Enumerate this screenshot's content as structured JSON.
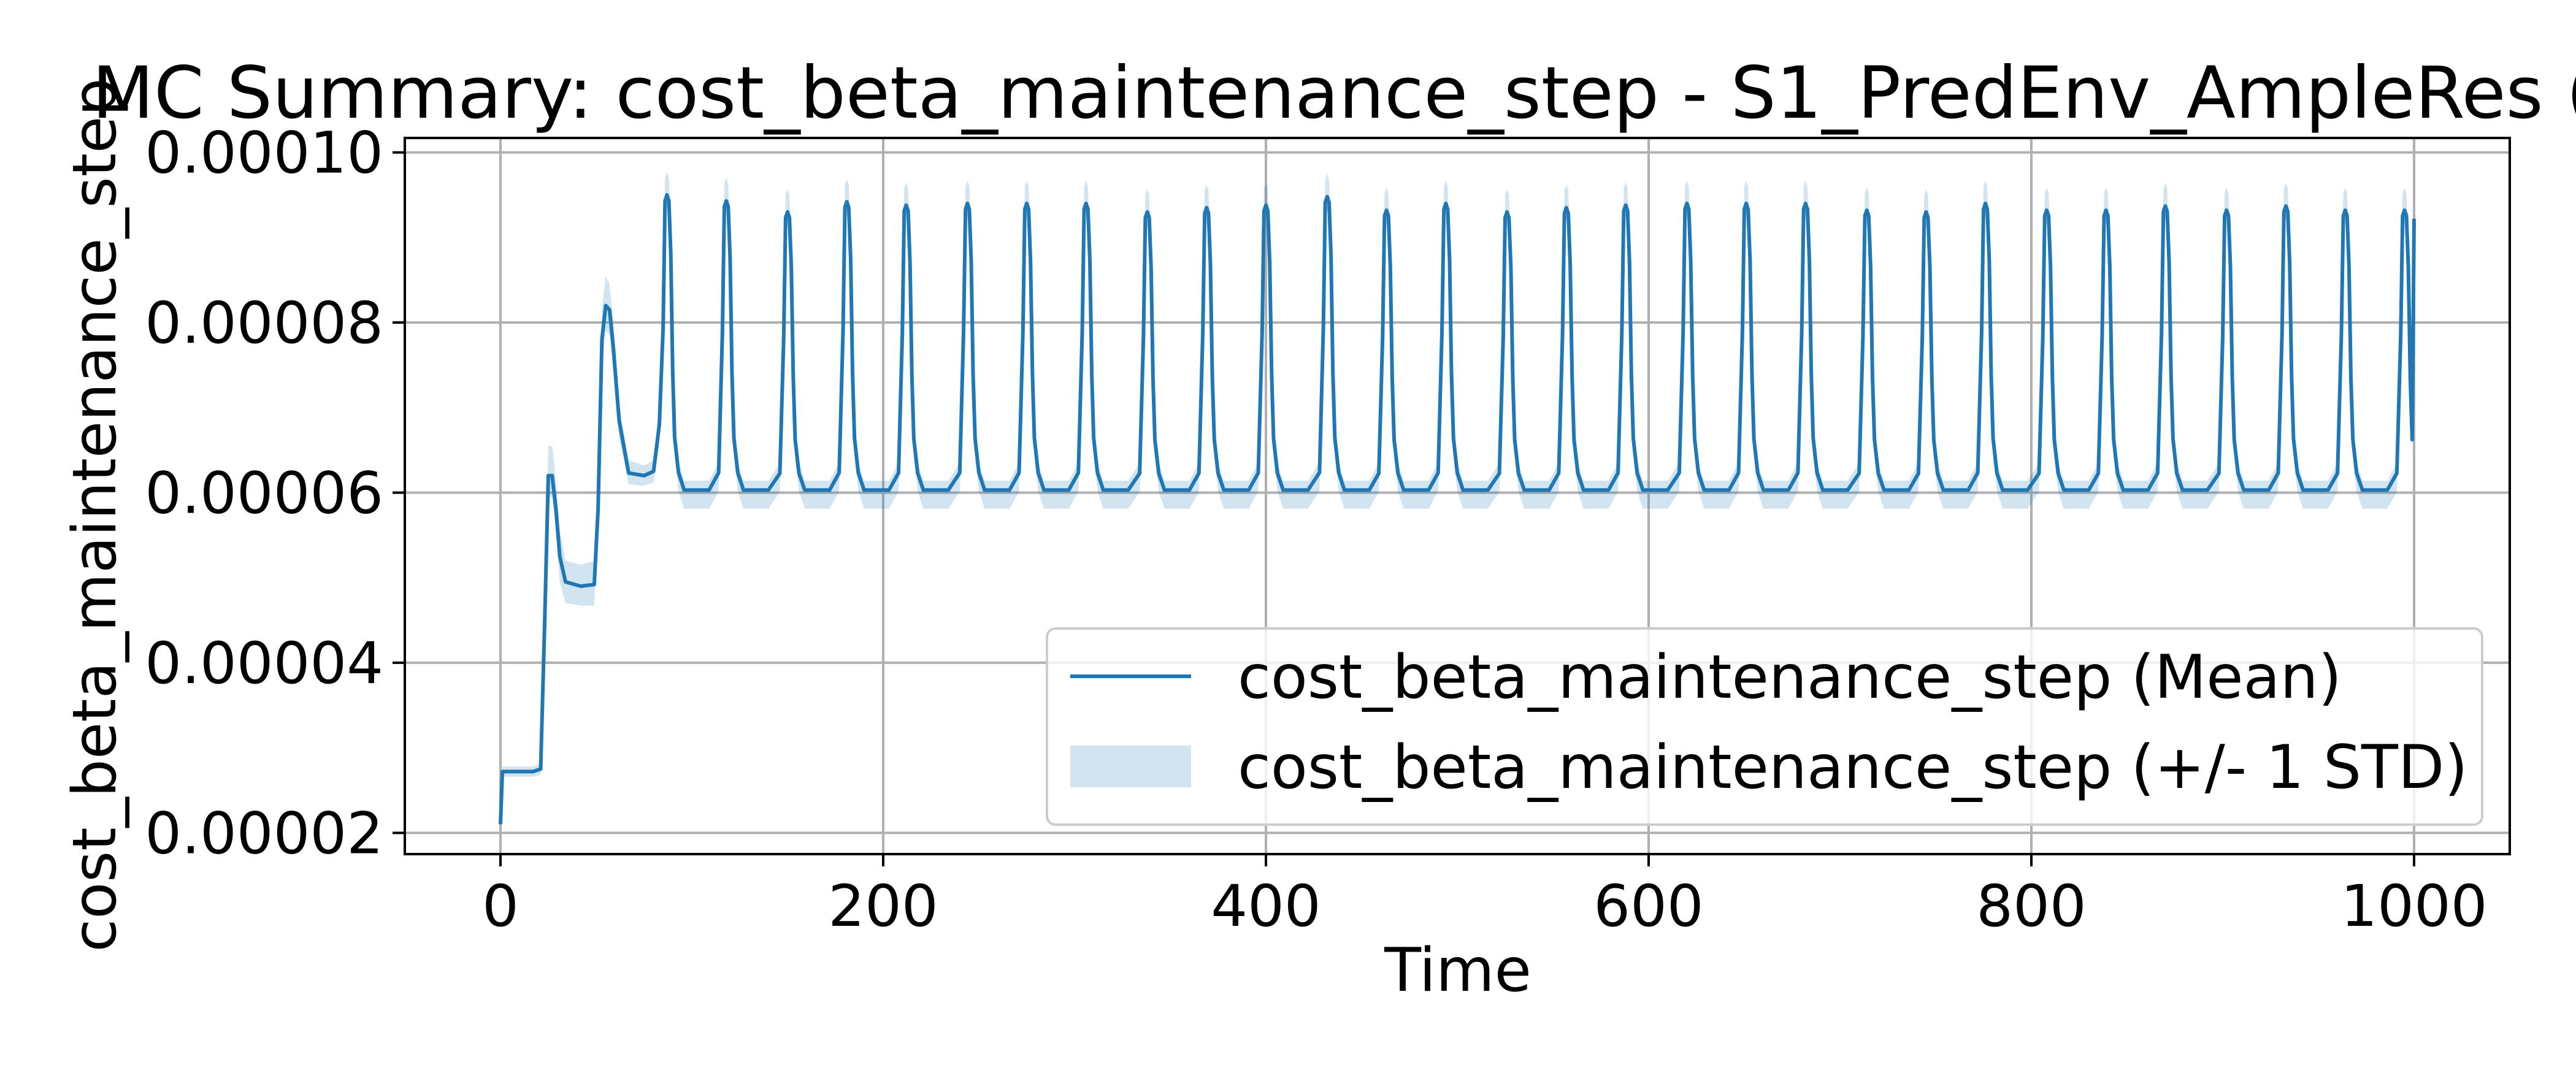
{
  "chart_data": {
    "type": "line",
    "title": "MC Summary: cost_beta_maintenance_step - S1_PredEnv_AmpleRes (",
    "xlabel": "Time",
    "ylabel": "cost_beta_maintenance_step",
    "xlim": [
      -50,
      1050
    ],
    "ylim": [
      1.75e-05,
      0.0001017
    ],
    "x_ticks": [
      0,
      200,
      400,
      600,
      800,
      1000
    ],
    "x_tick_labels": [
      "0",
      "200",
      "400",
      "600",
      "800",
      "1000"
    ],
    "y_ticks": [
      2e-05,
      4e-05,
      6e-05,
      8e-05,
      0.0001
    ],
    "y_tick_labels": [
      "0.00002",
      "0.00004",
      "0.00006",
      "0.00008",
      "0.00010"
    ],
    "grid": true,
    "legend_position": "lower-right",
    "colors": {
      "line": "#1f77b4",
      "band": "#1f77b4",
      "band_opacity": 0.2
    },
    "series": [
      {
        "name": "cost_beta_maintenance_step (Mean)",
        "kind": "line"
      },
      {
        "name": "cost_beta_maintenance_step (+/- 1 STD)",
        "kind": "band"
      }
    ],
    "mean": {
      "x": [
        0,
        1,
        17,
        21,
        23,
        25,
        27,
        29,
        31,
        34,
        42,
        49,
        51,
        53,
        55,
        57,
        59,
        62,
        67,
        75,
        80,
        83
      ],
      "y": [
        2.1e-05,
        2.72e-05,
        2.72e-05,
        2.75e-05,
        4.4e-05,
        6.2e-05,
        6.2e-05,
        5.8e-05,
        5.25e-05,
        4.95e-05,
        4.9e-05,
        4.92e-05,
        5.8e-05,
        7.8e-05,
        8.2e-05,
        8.15e-05,
        7.7e-05,
        6.85e-05,
        6.23e-05,
        6.2e-05,
        6.25e-05,
        6.8e-05
      ]
    },
    "std_band": {
      "x": [
        0,
        1,
        17,
        21,
        23,
        25,
        27,
        29,
        31,
        34,
        42,
        49,
        51,
        53,
        55,
        57,
        59,
        62,
        67,
        75,
        80,
        83
      ],
      "upper": [
        2.15e-05,
        2.78e-05,
        2.78e-05,
        2.82e-05,
        4.6e-05,
        6.55e-05,
        6.55e-05,
        6.15e-05,
        5.55e-05,
        5.2e-05,
        5.15e-05,
        5.2e-05,
        6e-05,
        8.15e-05,
        8.55e-05,
        8.45e-05,
        8e-05,
        7.05e-05,
        6.38e-05,
        6.32e-05,
        6.38e-05,
        7e-05
      ],
      "lower": [
        2.05e-05,
        2.66e-05,
        2.66e-05,
        2.68e-05,
        4.2e-05,
        5.95e-05,
        5.95e-05,
        5.55e-05,
        4.95e-05,
        4.7e-05,
        4.67e-05,
        4.67e-05,
        5.55e-05,
        7.5e-05,
        7.9e-05,
        7.85e-05,
        7.4e-05,
        6.65e-05,
        6.1e-05,
        6.08e-05,
        6.12e-05,
        6.6e-05
      ]
    },
    "peaks": {
      "note_free": true,
      "times": [
        87,
        118,
        150,
        181,
        212,
        244,
        275,
        306,
        338,
        369,
        400,
        432,
        463,
        494,
        526,
        557,
        588,
        620,
        651,
        682,
        714,
        745,
        776,
        808,
        839,
        870,
        902,
        933,
        964,
        995
      ],
      "peak_values": [
        9.5e-05,
        9.43e-05,
        9.3e-05,
        9.42e-05,
        9.38e-05,
        9.4e-05,
        9.4e-05,
        9.4e-05,
        9.3e-05,
        9.35e-05,
        9.38e-05,
        9.48e-05,
        9.32e-05,
        9.4e-05,
        9.3e-05,
        9.35e-05,
        9.38e-05,
        9.4e-05,
        9.4e-05,
        9.4e-05,
        9.32e-05,
        9.3e-05,
        9.4e-05,
        9.32e-05,
        9.32e-05,
        9.37e-05,
        9.32e-05,
        9.37e-05,
        9.32e-05,
        9.32e-05
      ],
      "baseline": 6.03e-05,
      "band_peak_extra": 2.7e-06,
      "band_trough_extra": 2.2e-06
    },
    "end_point": {
      "x": 1000,
      "y": 9.22e-05
    }
  }
}
